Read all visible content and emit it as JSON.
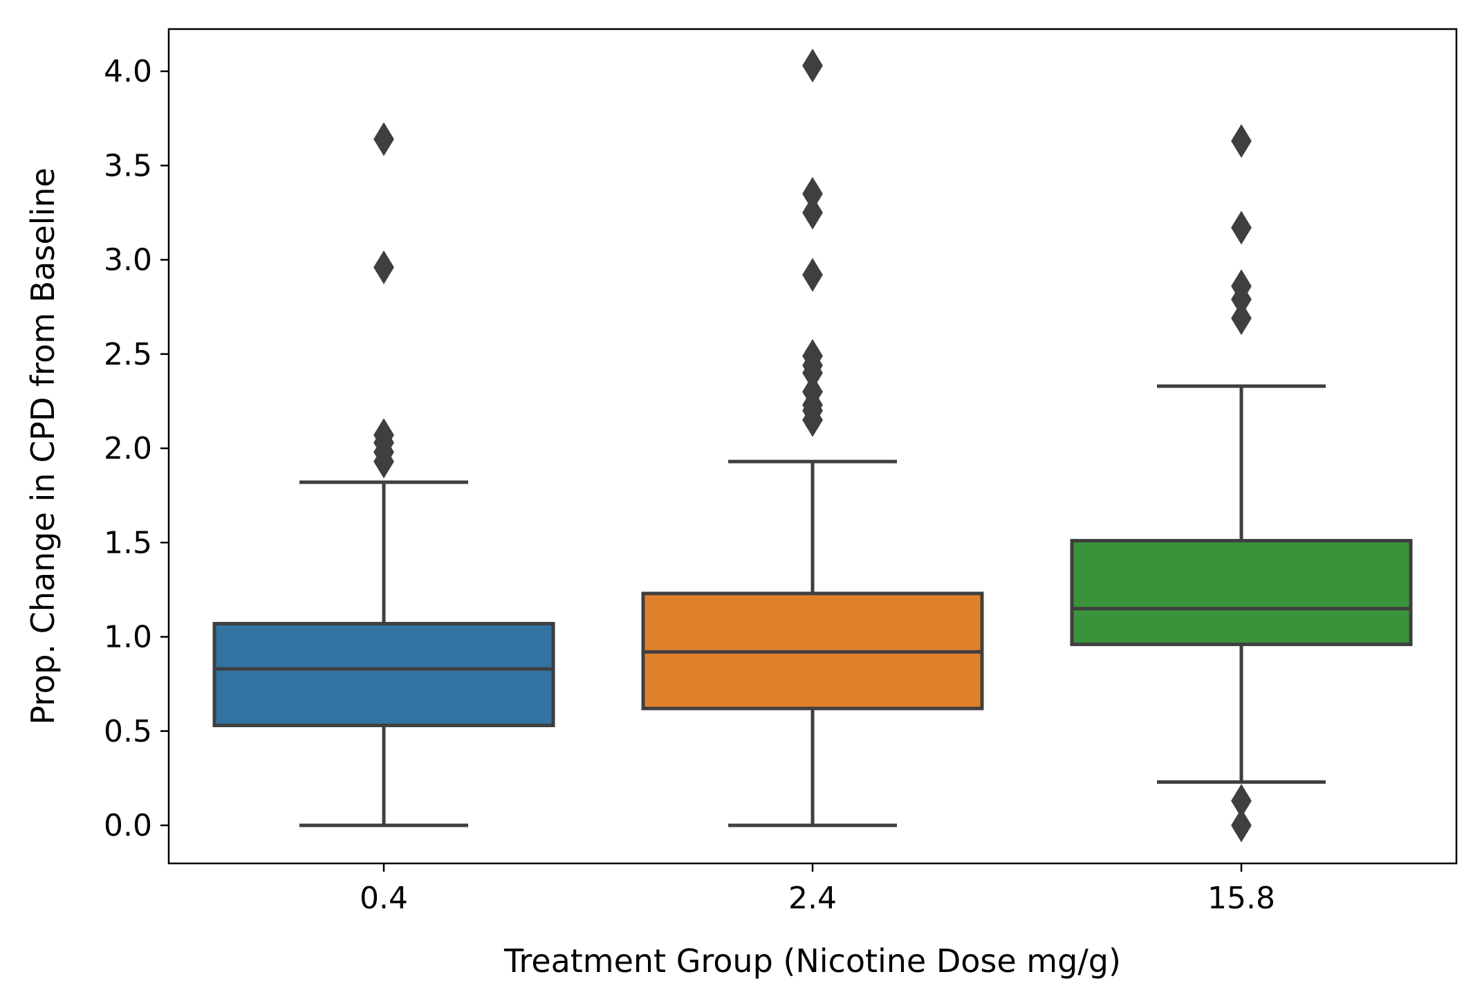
{
  "chart_data": {
    "type": "box",
    "xlabel": "Treatment Group (Nicotine Dose mg/g)",
    "ylabel": "Prop. Change in CPD from Baseline",
    "ylim": [
      -0.2,
      4.23
    ],
    "yticks": [
      "0.0",
      "0.5",
      "1.0",
      "1.5",
      "2.0",
      "2.5",
      "3.0",
      "3.5",
      "4.0"
    ],
    "grid": false,
    "legend": "none",
    "categories": [
      "0.4",
      "2.4",
      "15.8"
    ],
    "boxes": [
      {
        "category": "0.4",
        "color": "#3274a1",
        "whisker_low": 0.0,
        "q1": 0.53,
        "median": 0.83,
        "q3": 1.07,
        "whisker_high": 1.82,
        "outliers": [
          1.93,
          1.98,
          2.03,
          2.07,
          2.96,
          3.64
        ]
      },
      {
        "category": "2.4",
        "color": "#e1812c",
        "whisker_low": 0.0,
        "q1": 0.62,
        "median": 0.92,
        "q3": 1.23,
        "whisker_high": 1.93,
        "outliers": [
          2.15,
          2.2,
          2.23,
          2.3,
          2.4,
          2.44,
          2.49,
          2.92,
          3.25,
          3.35,
          4.03
        ]
      },
      {
        "category": "15.8",
        "color": "#3a923a",
        "whisker_low": 0.23,
        "q1": 0.96,
        "median": 1.15,
        "q3": 1.51,
        "whisker_high": 2.33,
        "outliers": [
          0.0,
          0.13,
          2.69,
          2.79,
          2.86,
          3.17,
          3.63
        ]
      }
    ],
    "line_color": "#3f3f3f"
  }
}
